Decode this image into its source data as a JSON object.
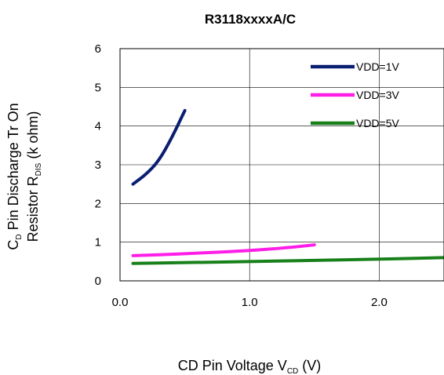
{
  "chart_data": {
    "type": "line",
    "title": "R3118xxxxA/C",
    "xlabel": {
      "main": "CD Pin Voltage V",
      "sub": "CD",
      "tail": " (V)"
    },
    "ylabel": {
      "line1": {
        "main": "C",
        "sub": "D",
        "tail": " Pin Discharge Tr On"
      },
      "line2": {
        "main": "Resistor R",
        "sub": "DIS",
        "tail": " (k ohm)"
      }
    },
    "xlim": [
      0.0,
      2.5
    ],
    "ylim": [
      0,
      6
    ],
    "x_ticks": [
      0.0,
      1.0,
      2.0
    ],
    "x_tick_labels": [
      "0.0",
      "1.0",
      "2.0"
    ],
    "y_ticks": [
      0,
      1,
      2,
      3,
      4,
      5,
      6
    ],
    "y_tick_labels": [
      "0",
      "1",
      "2",
      "3",
      "4",
      "5",
      "6"
    ],
    "grid": true,
    "legend_position": "top-right",
    "series": [
      {
        "name": "VDD=1V",
        "color": "#0b1f72",
        "points": [
          [
            0.1,
            2.5
          ],
          [
            0.2,
            2.75
          ],
          [
            0.3,
            3.1
          ],
          [
            0.4,
            3.7
          ],
          [
            0.5,
            4.4
          ]
        ]
      },
      {
        "name": "VDD=3V",
        "color": "#ff1ee8",
        "points": [
          [
            0.1,
            0.65
          ],
          [
            0.5,
            0.7
          ],
          [
            1.0,
            0.78
          ],
          [
            1.3,
            0.86
          ],
          [
            1.5,
            0.93
          ]
        ]
      },
      {
        "name": "VDD=5V",
        "color": "#18801a",
        "points": [
          [
            0.1,
            0.45
          ],
          [
            0.5,
            0.47
          ],
          [
            1.0,
            0.5
          ],
          [
            1.5,
            0.53
          ],
          [
            2.0,
            0.56
          ],
          [
            2.5,
            0.6
          ]
        ]
      }
    ]
  }
}
